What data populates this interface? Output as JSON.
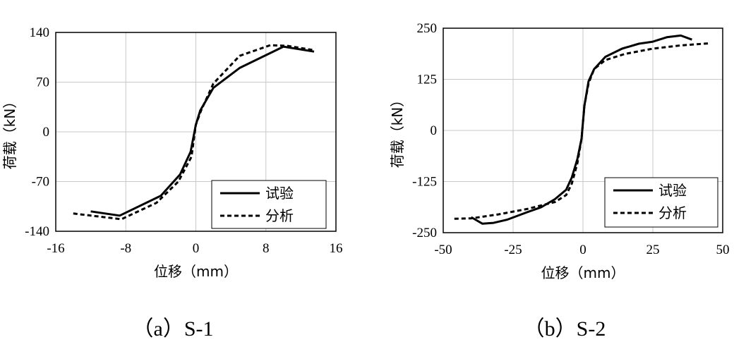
{
  "chart_data": [
    {
      "type": "line",
      "caption": "（a）S-1",
      "xlabel": "位移（mm）",
      "ylabel": "荷载（kN）",
      "xlim": [
        -16,
        16
      ],
      "ylim": [
        -140,
        140
      ],
      "xticks": [
        -16,
        -8,
        0,
        8,
        16
      ],
      "xtick_labels": [
        "-16",
        "-8",
        "0",
        "8",
        "16"
      ],
      "yticks": [
        140,
        70,
        0,
        -70,
        -140
      ],
      "ytick_labels": [
        "140",
        "70",
        "0",
        "-70",
        "-140"
      ],
      "grid": true,
      "legend_position": "bottom-right",
      "series": [
        {
          "name": "试验",
          "style": "solid",
          "x": [
            -12,
            -8.7,
            -4,
            -1.8,
            -0.6,
            0,
            0.5,
            2,
            5,
            10,
            13.5
          ],
          "y": [
            -112,
            -118,
            -90,
            -60,
            -28,
            10,
            30,
            62,
            90,
            120,
            113
          ]
        },
        {
          "name": "分析",
          "style": "dashed",
          "x": [
            -14,
            -8.5,
            -4.5,
            -2,
            -0.5,
            0,
            0.6,
            2,
            5,
            8.5,
            10.5,
            13.5
          ],
          "y": [
            -115,
            -123,
            -100,
            -70,
            -35,
            10,
            30,
            68,
            107,
            122,
            121,
            115
          ]
        }
      ]
    },
    {
      "type": "line",
      "caption": "（b）S-2",
      "xlabel": "位移（mm）",
      "ylabel": "荷载（kN）",
      "xlim": [
        -50,
        50
      ],
      "ylim": [
        -250,
        250
      ],
      "xticks": [
        -50,
        -25,
        0,
        25,
        50
      ],
      "xtick_labels": [
        "-50",
        "-25",
        "0",
        "25",
        "50"
      ],
      "yticks": [
        250,
        125,
        0,
        -125,
        -250
      ],
      "ytick_labels": [
        "250",
        "125",
        "0",
        "-125",
        "-250"
      ],
      "grid": true,
      "legend_position": "bottom-right",
      "series": [
        {
          "name": "试验",
          "style": "solid",
          "x": [
            -40,
            -36,
            -32,
            -27,
            -20,
            -15,
            -10,
            -6,
            -4,
            -2,
            -0.5,
            0,
            0.5,
            2,
            4,
            8,
            14,
            20,
            25,
            30,
            35,
            39
          ],
          "y": [
            -212,
            -228,
            -226,
            -218,
            -200,
            -188,
            -168,
            -145,
            -115,
            -70,
            -20,
            20,
            60,
            120,
            150,
            180,
            200,
            212,
            217,
            228,
            232,
            222
          ]
        },
        {
          "name": "分析",
          "style": "dashed",
          "x": [
            -46,
            -40,
            -30,
            -20,
            -10,
            -6,
            -4,
            -2,
            -0.5,
            0,
            0.5,
            2,
            4,
            8,
            15,
            25,
            35,
            45
          ],
          "y": [
            -216,
            -215,
            -205,
            -192,
            -175,
            -158,
            -130,
            -80,
            -20,
            20,
            60,
            115,
            150,
            172,
            187,
            200,
            208,
            213
          ]
        }
      ]
    }
  ]
}
